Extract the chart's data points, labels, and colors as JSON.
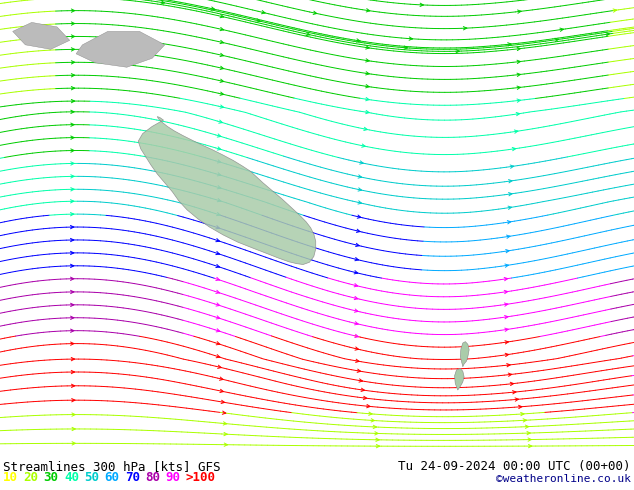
{
  "title_left": "Streamlines 300 hPa [kts] GFS",
  "title_right": "Tu 24-09-2024 00:00 UTC (00+00)",
  "watermark": "©weatheronline.co.uk",
  "legend_values": [
    "10",
    "20",
    "30",
    "40",
    "50",
    "60",
    "70",
    "80",
    "90",
    ">100"
  ],
  "legend_colors": [
    "#ffff00",
    "#aaff00",
    "#00cc00",
    "#00ffaa",
    "#00cccc",
    "#00aaff",
    "#0000ff",
    "#aa00aa",
    "#ff00ff",
    "#ff0000"
  ],
  "bg_color": "#d0d0d0",
  "ocean_color": "#d8d8d8",
  "australia_color": "#aaccaa",
  "nz_color": "#aaccaa",
  "land_grey": "#bbbbbb",
  "title_color": "#000000",
  "title_fontsize": 9,
  "legend_fontsize": 9,
  "watermark_color": "#000088",
  "watermark_fontsize": 8,
  "fig_width": 6.34,
  "fig_height": 4.9,
  "dpi": 100
}
